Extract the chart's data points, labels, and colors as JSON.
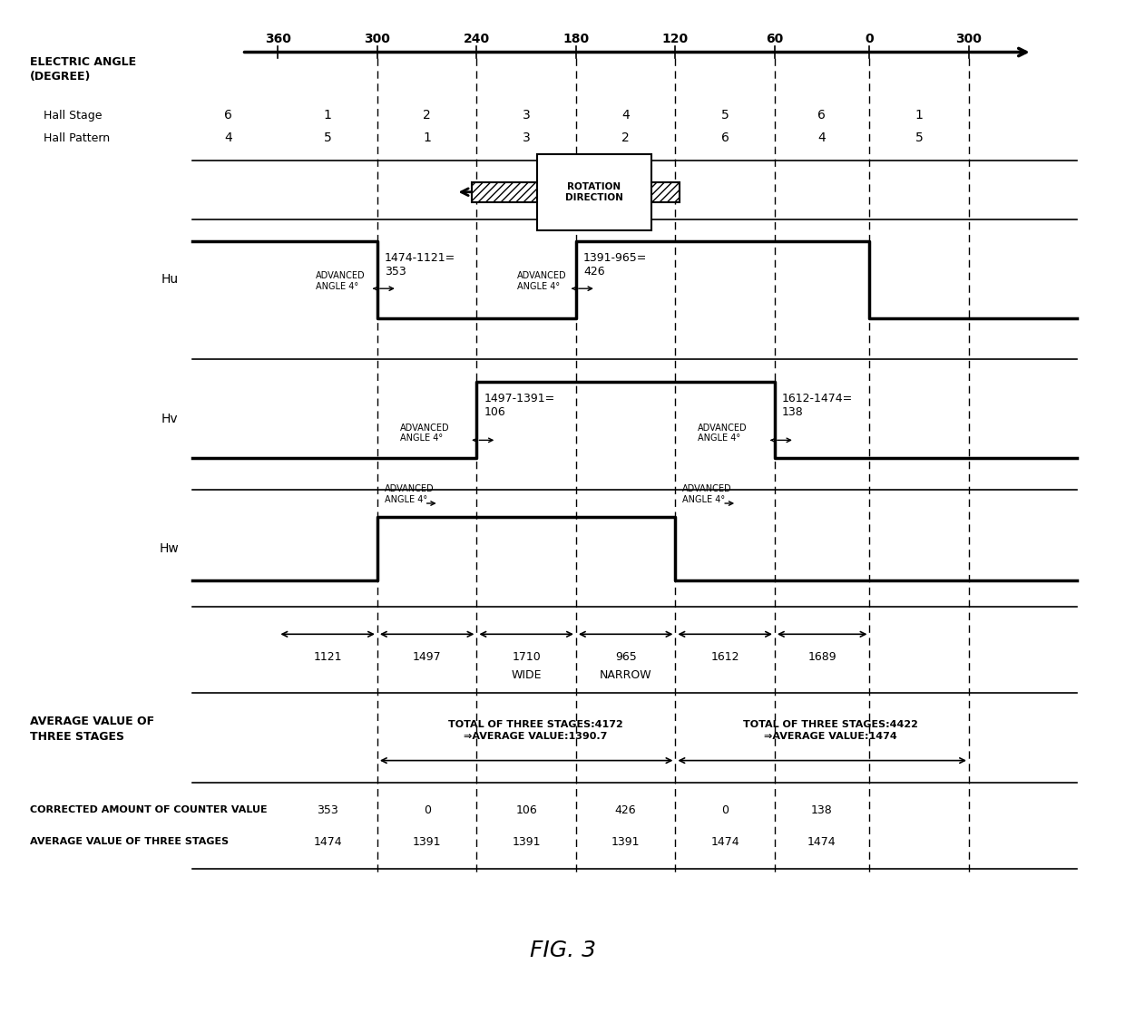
{
  "fig_width": 12.4,
  "fig_height": 11.17,
  "dpi": 100,
  "bg_color": "#ffffff",
  "title": "FIG. 3",
  "angle_labels": [
    "360",
    "300",
    "240",
    "180",
    "120",
    "60",
    "0",
    "300"
  ],
  "hall_stage_values": [
    "6",
    "1",
    "2",
    "3",
    "4",
    "5",
    "6",
    "1"
  ],
  "hall_pattern_values": [
    "4",
    "5",
    "1",
    "3",
    "2",
    "6",
    "4",
    "5"
  ],
  "corr_vals": [
    "353",
    "0",
    "106",
    "426",
    "0",
    "138"
  ],
  "avg_vals": [
    "1474",
    "1391",
    "1391",
    "1391",
    "1474",
    "1474"
  ],
  "measure_vals": [
    "1121",
    "1497",
    "1710",
    "965",
    "1612",
    "1689"
  ]
}
